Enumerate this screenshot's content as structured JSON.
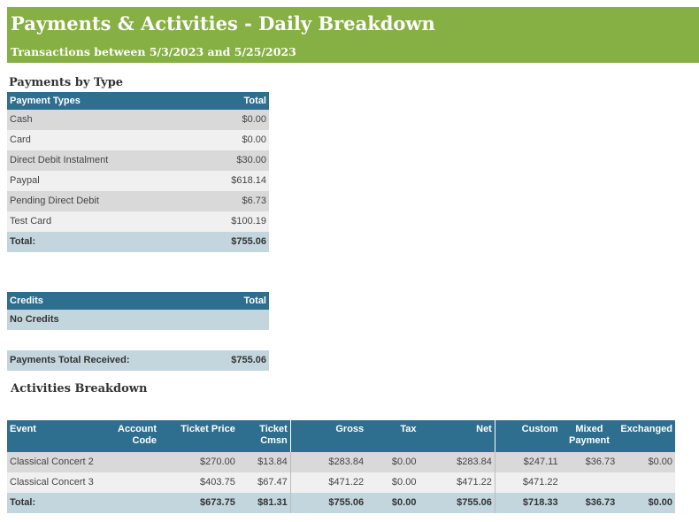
{
  "header": {
    "title": "Payments & Activities - Daily Breakdown",
    "subtitle": "Transactions between 5/3/2023 and 5/25/2023"
  },
  "payments_by_type": {
    "section_title": "Payments by Type",
    "col_type": "Payment Types",
    "col_total": "Total",
    "rows": [
      {
        "type": "Cash",
        "total": "$0.00"
      },
      {
        "type": "Card",
        "total": "$0.00"
      },
      {
        "type": "Direct Debit Instalment",
        "total": "$30.00"
      },
      {
        "type": "Paypal",
        "total": "$618.14"
      },
      {
        "type": "Pending Direct Debit",
        "total": "$6.73"
      },
      {
        "type": "Test Card",
        "total": "$100.19"
      }
    ],
    "total_label": "Total:",
    "total_value": "$755.06"
  },
  "credits": {
    "col_credits": "Credits",
    "col_total": "Total",
    "empty_text": "No Credits",
    "received_label": "Payments Total Received:",
    "received_value": "$755.06"
  },
  "activities": {
    "section_title": "Activities Breakdown",
    "headers": {
      "event": "Event",
      "account_code_1": "Account",
      "account_code_2": "Code",
      "ticket_price": "Ticket Price",
      "ticket_cmsn_1": "Ticket",
      "ticket_cmsn_2": "Cmsn",
      "gross": "Gross",
      "tax": "Tax",
      "net": "Net",
      "custom": "Custom",
      "mixed_1": "Mixed",
      "mixed_2": "Payment",
      "exchanged": "Exchanged"
    },
    "rows": [
      {
        "event": "Classical Concert 2",
        "account_code": "",
        "ticket_price": "$270.00",
        "ticket_cmsn": "$13.84",
        "gross": "$283.84",
        "tax": "$0.00",
        "net": "$283.84",
        "custom": "$247.11",
        "mixed": "$36.73",
        "exchanged": "$0.00"
      },
      {
        "event": "Classical Concert 3",
        "account_code": "",
        "ticket_price": "$403.75",
        "ticket_cmsn": "$67.47",
        "gross": "$471.22",
        "tax": "$0.00",
        "net": "$471.22",
        "custom": "$471.22",
        "mixed": "",
        "exchanged": ""
      }
    ],
    "total": {
      "label": "Total:",
      "ticket_price": "$673.75",
      "ticket_cmsn": "$81.31",
      "gross": "$755.06",
      "tax": "$0.00",
      "net": "$755.06",
      "custom": "$718.33",
      "mixed": "$36.73",
      "exchanged": "$0.00"
    }
  }
}
